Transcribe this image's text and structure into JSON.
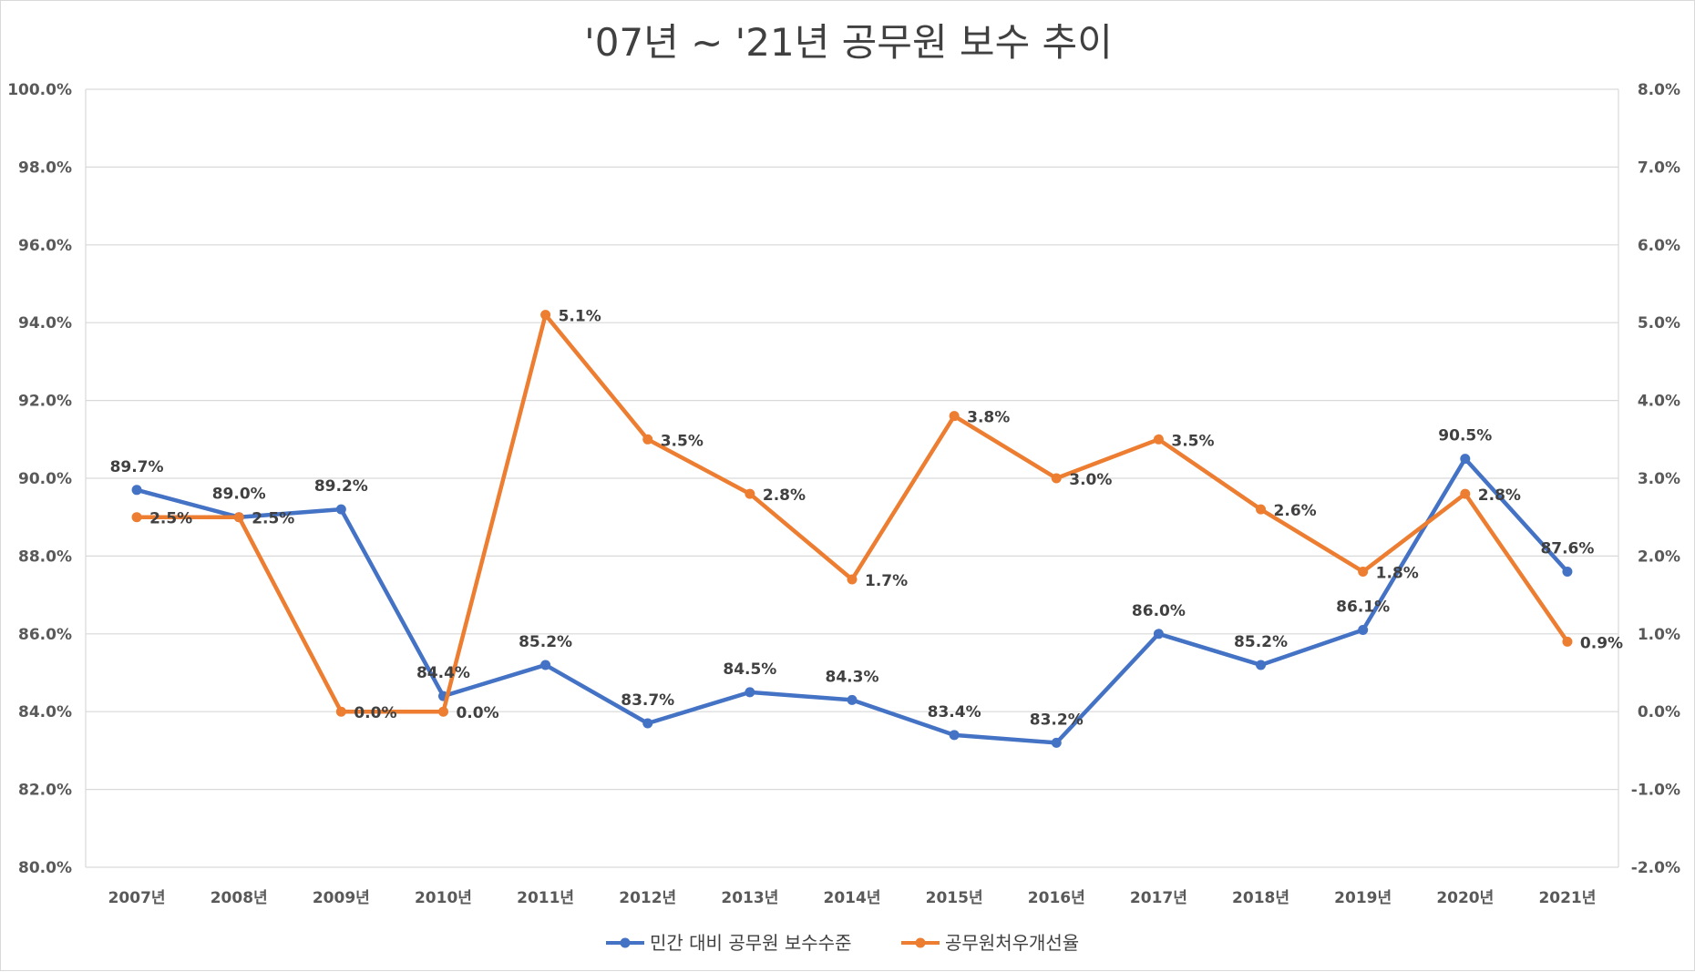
{
  "chart_data": {
    "type": "line",
    "title": "'07년 ~ '21년 공무원 보수 추이",
    "categories": [
      "2007년",
      "2008년",
      "2009년",
      "2010년",
      "2011년",
      "2012년",
      "2013년",
      "2014년",
      "2015년",
      "2016년",
      "2017년",
      "2018년",
      "2019년",
      "2020년",
      "2021년"
    ],
    "y_left": {
      "ylim": [
        80,
        100
      ],
      "ticks": [
        "80.0%",
        "82.0%",
        "84.0%",
        "86.0%",
        "88.0%",
        "90.0%",
        "92.0%",
        "94.0%",
        "96.0%",
        "98.0%",
        "100.0%"
      ]
    },
    "y_right": {
      "ylim": [
        -2,
        8
      ],
      "ticks": [
        "-2.0%",
        "-1.0%",
        "0.0%",
        "1.0%",
        "2.0%",
        "3.0%",
        "4.0%",
        "5.0%",
        "6.0%",
        "7.0%",
        "8.0%"
      ]
    },
    "grid": true,
    "legend_position": "bottom",
    "series": [
      {
        "name": "민간 대비 공무원 보수수준",
        "axis": "left",
        "color": "#4472C4",
        "values": [
          89.7,
          89.0,
          89.2,
          84.4,
          85.2,
          83.7,
          84.5,
          84.3,
          83.4,
          83.2,
          86.0,
          85.2,
          86.1,
          90.5,
          87.6
        ],
        "labels": [
          "89.7%",
          "89.0%",
          "89.2%",
          "84.4%",
          "85.2%",
          "83.7%",
          "84.5%",
          "84.3%",
          "83.4%",
          "83.2%",
          "86.0%",
          "85.2%",
          "86.1%",
          "90.5%",
          "87.6%"
        ]
      },
      {
        "name": "공무원처우개선율",
        "axis": "right",
        "color": "#ED7D31",
        "values": [
          2.5,
          2.5,
          0.0,
          0.0,
          5.1,
          3.5,
          2.8,
          1.7,
          3.8,
          3.0,
          3.5,
          2.6,
          1.8,
          2.8,
          0.9
        ],
        "labels": [
          "2.5%",
          "2.5%",
          "0.0%",
          "0.0%",
          "5.1%",
          "3.5%",
          "2.8%",
          "1.7%",
          "3.8%",
          "3.0%",
          "3.5%",
          "2.6%",
          "1.8%",
          "2.8%",
          "0.9%"
        ]
      }
    ]
  }
}
